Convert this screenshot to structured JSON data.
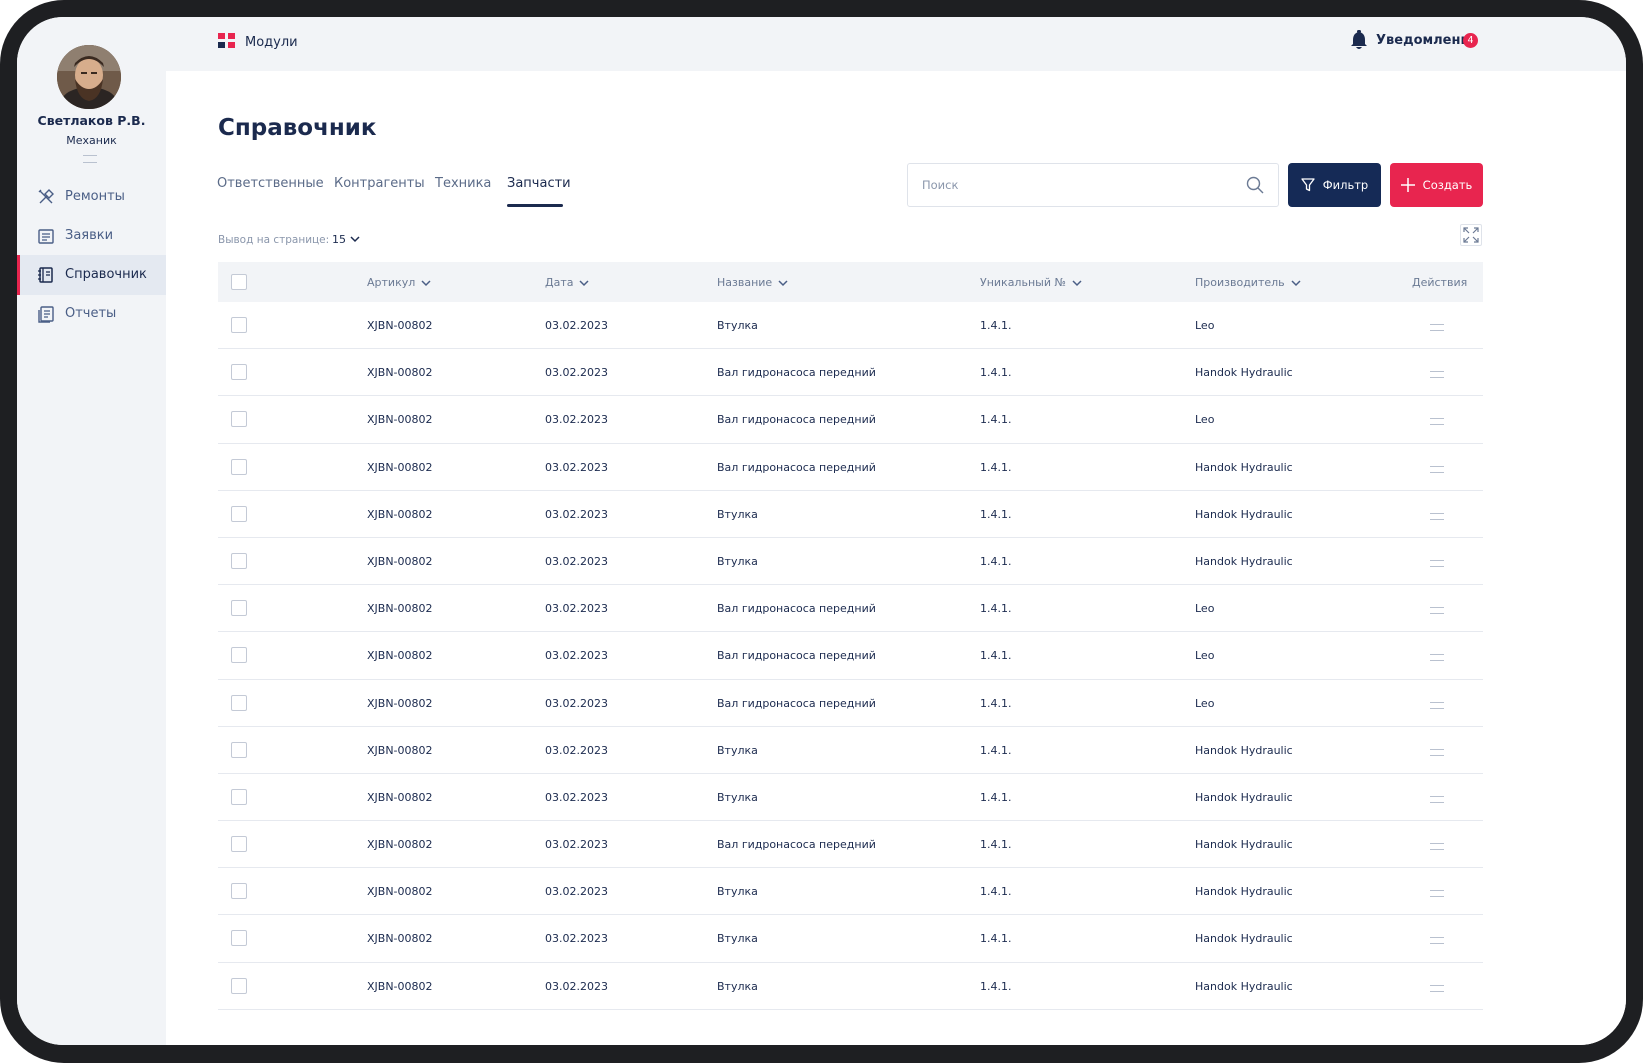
{
  "user": {
    "name": "Светлаков Р.В.",
    "role": "Механик"
  },
  "sidebar": {
    "items": [
      {
        "label": "Ремонты",
        "icon": "tools-icon"
      },
      {
        "label": "Заявки",
        "icon": "requests-icon"
      },
      {
        "label": "Справочник",
        "icon": "book-icon",
        "active": true
      },
      {
        "label": "Отчеты",
        "icon": "reports-icon"
      }
    ]
  },
  "topbar": {
    "modules_label": "Модули",
    "notifications_label": "Уведомления",
    "notifications_count": "4"
  },
  "page": {
    "title": "Справочник"
  },
  "tabs": [
    {
      "label": "Ответственные"
    },
    {
      "label": "Контрагенты"
    },
    {
      "label": "Техника"
    },
    {
      "label": "Запчасти",
      "active": true
    }
  ],
  "search": {
    "placeholder": "Поиск",
    "value": ""
  },
  "buttons": {
    "filter_label": "Фильтр",
    "create_label": "Создать"
  },
  "pagination": {
    "per_page_label": "Вывод на странице:",
    "per_page_value": "15"
  },
  "table": {
    "columns": {
      "article": "Артикул",
      "date": "Дата",
      "name": "Название",
      "unique": "Уникальный №",
      "manufacturer": "Производитель",
      "actions": "Действия"
    },
    "rows": [
      [
        "XJBN-00802",
        "03.02.2023",
        "Втулка",
        "1.4.1.",
        "Leo"
      ],
      [
        "XJBN-00802",
        "03.02.2023",
        "Вал гидронасоса передний",
        "1.4.1.",
        "Handok Hydraulic"
      ],
      [
        "XJBN-00802",
        "03.02.2023",
        "Вал гидронасоса передний",
        "1.4.1.",
        "Leo"
      ],
      [
        "XJBN-00802",
        "03.02.2023",
        "Вал гидронасоса передний",
        "1.4.1.",
        "Handok Hydraulic"
      ],
      [
        "XJBN-00802",
        "03.02.2023",
        "Втулка",
        "1.4.1.",
        "Handok Hydraulic"
      ],
      [
        "XJBN-00802",
        "03.02.2023",
        "Втулка",
        "1.4.1.",
        "Handok Hydraulic"
      ],
      [
        "XJBN-00802",
        "03.02.2023",
        "Вал гидронасоса передний",
        "1.4.1.",
        "Leo"
      ],
      [
        "XJBN-00802",
        "03.02.2023",
        "Вал гидронасоса передний",
        "1.4.1.",
        "Leo"
      ],
      [
        "XJBN-00802",
        "03.02.2023",
        "Вал гидронасоса передний",
        "1.4.1.",
        "Leo"
      ],
      [
        "XJBN-00802",
        "03.02.2023",
        "Втулка",
        "1.4.1.",
        "Handok Hydraulic"
      ],
      [
        "XJBN-00802",
        "03.02.2023",
        "Втулка",
        "1.4.1.",
        "Handok Hydraulic"
      ],
      [
        "XJBN-00802",
        "03.02.2023",
        "Вал гидронасоса передний",
        "1.4.1.",
        "Handok Hydraulic"
      ],
      [
        "XJBN-00802",
        "03.02.2023",
        "Втулка",
        "1.4.1.",
        "Handok Hydraulic"
      ],
      [
        "XJBN-00802",
        "03.02.2023",
        "Втулка",
        "1.4.1.",
        "Handok Hydraulic"
      ],
      [
        "XJBN-00802",
        "03.02.2023",
        "Втулка",
        "1.4.1.",
        "Handok Hydraulic"
      ]
    ]
  },
  "colors": {
    "primary": "#152a56",
    "accent": "#e8254f",
    "sidebar_bg": "#f2f4f7"
  }
}
